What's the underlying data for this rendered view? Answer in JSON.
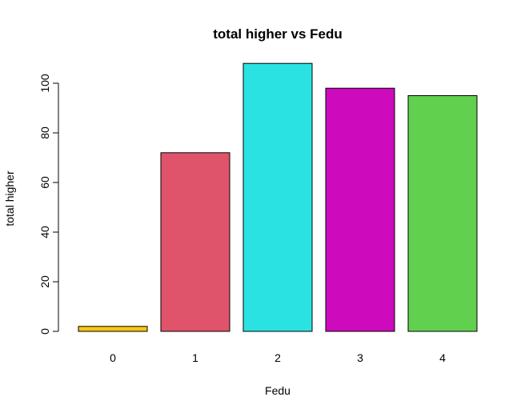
{
  "chart_data": {
    "type": "bar",
    "title": "total higher vs Fedu",
    "xlabel": "Fedu",
    "ylabel": "total higher",
    "categories": [
      "0",
      "1",
      "2",
      "3",
      "4"
    ],
    "values": [
      2,
      72,
      108,
      98,
      95
    ],
    "colors": [
      "#F5C710",
      "#DF536B",
      "#2BE2E2",
      "#CD0BBC",
      "#61D04F"
    ],
    "ylim": [
      0,
      110
    ],
    "yticks": [
      0,
      20,
      40,
      60,
      80,
      100
    ],
    "yticks_labels": [
      "0",
      "20",
      "40",
      "60",
      "80",
      "100"
    ],
    "grid": false,
    "legend": "none"
  }
}
